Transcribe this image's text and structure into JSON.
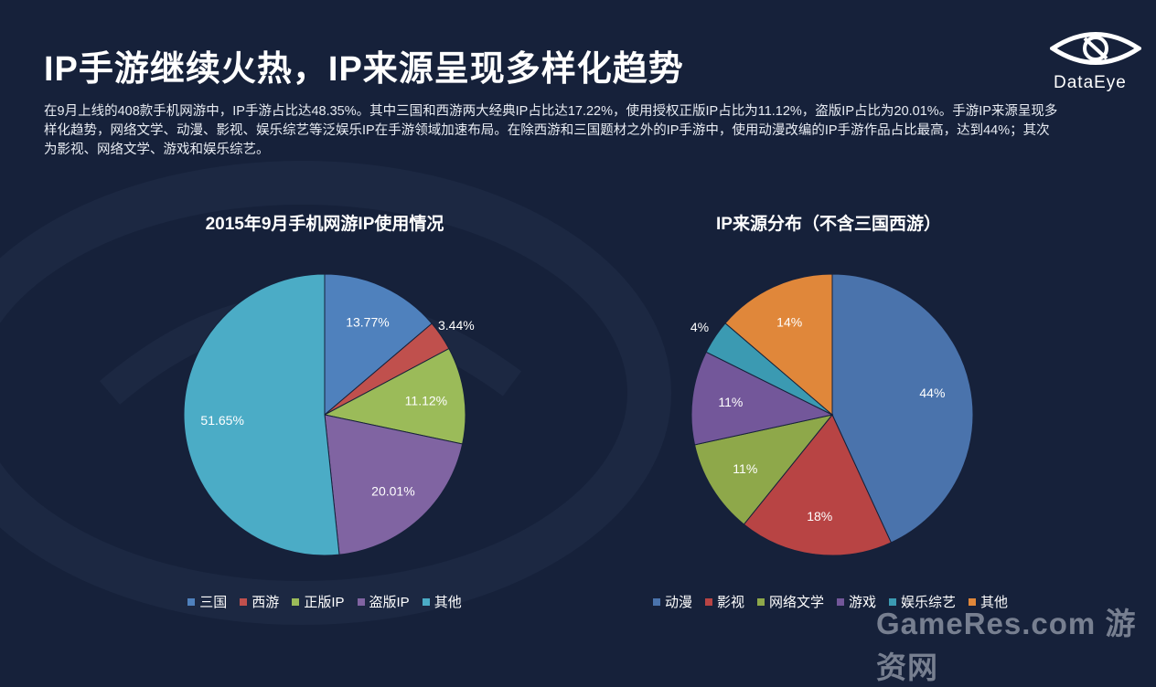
{
  "title": "IP手游继续火热，IP来源呈现多样化趋势",
  "description": "在9月上线的408款手机网游中，IP手游占比达48.35%。其中三国和西游两大经典IP占比达17.22%，使用授权正版IP占比为11.12%，盗版IP占比为20.01%。手游IP来源呈现多样化趋势，网络文学、动漫、影视、娱乐综艺等泛娱乐IP在手游领域加速布局。在除西游和三国题材之外的IP手游中，使用动漫改编的IP手游作品占比最高，达到44%；其次为影视、网络文学、游戏和娱乐综艺。",
  "logo_text": "DataEye",
  "watermark": "GameRes.com 游资网",
  "chart_data": [
    {
      "type": "pie",
      "title": "2015年9月手机网游IP使用情况",
      "categories": [
        "三国",
        "西游",
        "正版IP",
        "盗版IP",
        "其他"
      ],
      "values": [
        13.77,
        3.44,
        11.12,
        20.01,
        51.65
      ],
      "labels": [
        "13.77%",
        "3.44%",
        "11.12%",
        "20.01%",
        "51.65%"
      ],
      "colors": [
        "#4f81bd",
        "#c0504d",
        "#9bbb59",
        "#8064a2",
        "#4bacc6"
      ],
      "legend_position": "bottom"
    },
    {
      "type": "pie",
      "title": "IP来源分布（不含三国西游）",
      "categories": [
        "动漫",
        "影视",
        "网络文学",
        "游戏",
        "娱乐综艺",
        "其他"
      ],
      "values": [
        44,
        18,
        11,
        11,
        4,
        14
      ],
      "labels": [
        "44%",
        "18%",
        "11%",
        "11%",
        "4%",
        "14%"
      ],
      "colors": [
        "#4a73ac",
        "#b84444",
        "#8ea84a",
        "#73579a",
        "#3b9ab2",
        "#e0873a"
      ],
      "legend_position": "bottom"
    }
  ]
}
